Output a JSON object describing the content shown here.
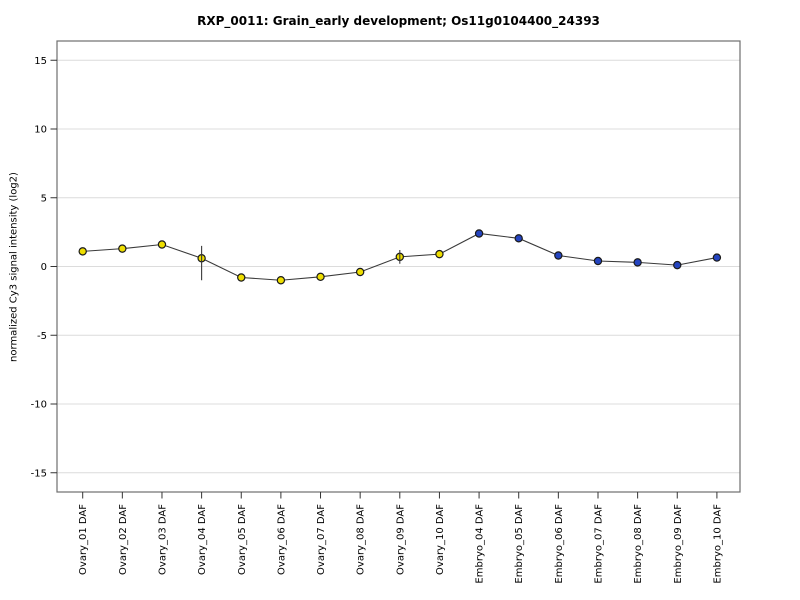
{
  "chart_data": {
    "type": "line",
    "title": "RXP_0011: Grain_early development; Os11g0104400_24393",
    "xlabel": "",
    "ylabel": "normalized Cy3 signal intensity (log2)",
    "ylim": [
      -16.4,
      16.4
    ],
    "yticks": [
      15,
      10,
      5,
      0,
      -5,
      -10,
      -15
    ],
    "grid": true,
    "legend": "none",
    "categories": [
      "Ovary_01 DAF",
      "Ovary_02 DAF",
      "Ovary_03 DAF",
      "Ovary_04 DAF",
      "Ovary_05 DAF",
      "Ovary_06 DAF",
      "Ovary_07 DAF",
      "Ovary_08 DAF",
      "Ovary_09 DAF",
      "Ovary_10 DAF",
      "Embryo_04 DAF",
      "Embryo_05 DAF",
      "Embryo_06 DAF",
      "Embryo_07 DAF",
      "Embryo_08 DAF",
      "Embryo_09 DAF",
      "Embryo_10 DAF"
    ],
    "series": [
      {
        "name": "normalized Cy3 signal intensity (log2)",
        "values": [
          1.1,
          1.3,
          1.6,
          0.6,
          -0.8,
          -1.0,
          -0.75,
          -0.4,
          0.7,
          0.9,
          2.4,
          2.05,
          0.8,
          0.4,
          0.3,
          0.1,
          0.65
        ],
        "point_groups": [
          "ovary",
          "ovary",
          "ovary",
          "ovary",
          "ovary",
          "ovary",
          "ovary",
          "ovary",
          "ovary",
          "ovary",
          "embryo",
          "embryo",
          "embryo",
          "embryo",
          "embryo",
          "embryo",
          "embryo"
        ]
      }
    ],
    "error_bars": [
      {
        "category": "Ovary_04 DAF",
        "index": 3,
        "low": -1.0,
        "high": 1.5
      },
      {
        "category": "Ovary_09 DAF",
        "index": 8,
        "low": 0.2,
        "high": 1.2
      }
    ],
    "group_colors": {
      "ovary": "#EEDE00",
      "embryo": "#2444C0"
    },
    "line_color": "#3a3a3a",
    "point_stroke": "#1a1a1a",
    "grid_color": "#dcdcdc",
    "frame_color": "#6e6e6e",
    "tick_color": "#333333",
    "text_color": "#000000"
  }
}
